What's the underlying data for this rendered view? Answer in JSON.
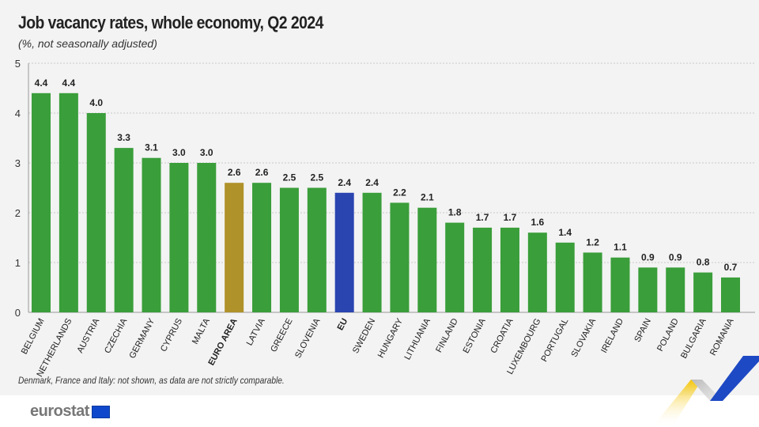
{
  "title": "Job vacancy rates, whole economy, Q2 2024",
  "subtitle": "(%, not seasonally adjusted)",
  "note": "Denmark, France and Italy: not shown, as data are not strictly comparable.",
  "logo": "eurostat",
  "colors": {
    "country": "#3a9e3a",
    "euro_area": "#b0922a",
    "eu": "#2a44b0"
  },
  "chart_data": {
    "type": "bar",
    "title": "Job vacancy rates, whole economy, Q2 2024",
    "ylabel": "%",
    "ylim": [
      0,
      5
    ],
    "yticks": [
      0,
      1,
      2,
      3,
      4,
      5
    ],
    "grid": true,
    "categories": [
      "BELGIUM",
      "NETHERLANDS",
      "AUSTRIA",
      "CZECHIA",
      "GERMANY",
      "CYPRUS",
      "MALTA",
      "EURO AREA",
      "LATVIA",
      "GREECE",
      "SLOVENIA",
      "EU",
      "SWEDEN",
      "HUNGARY",
      "LITHUANIA",
      "FINLAND",
      "ESTONIA",
      "CROATIA",
      "LUXEMBOURG",
      "PORTUGAL",
      "SLOVAKIA",
      "IRELAND",
      "SPAIN",
      "POLAND",
      "BULGARIA",
      "ROMANIA"
    ],
    "values": [
      4.4,
      4.4,
      4.0,
      3.3,
      3.1,
      3.0,
      3.0,
      2.6,
      2.6,
      2.5,
      2.5,
      2.4,
      2.4,
      2.2,
      2.1,
      1.8,
      1.7,
      1.7,
      1.6,
      1.4,
      1.2,
      1.1,
      0.9,
      0.9,
      0.8,
      0.7
    ],
    "highlight": {
      "EURO AREA": "euro_area",
      "EU": "eu"
    }
  }
}
